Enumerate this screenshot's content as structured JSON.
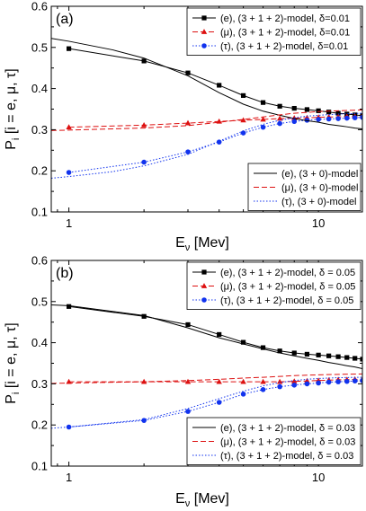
{
  "chart_data": [
    {
      "type": "line",
      "panel_label": "(a)",
      "xlabel_main": "E",
      "xlabel_sub": "ν",
      "xlabel_rest": " [Mev]",
      "ylabel_main": "P",
      "ylabel_sub": "i",
      "ylabel_rest": " [i = e, μ, τ]",
      "x_scale": "log",
      "xlim": [
        0.85,
        15
      ],
      "ylim": [
        0.1,
        0.6
      ],
      "x_ticks": [
        1,
        10
      ],
      "x_tick_labels": [
        "1",
        "10"
      ],
      "y_ticks": [
        0.1,
        0.2,
        0.3,
        0.4,
        0.5,
        0.6
      ],
      "y_tick_labels": [
        "0.1",
        "0.2",
        "0.3",
        "0.4",
        "0.5",
        "0.6"
      ],
      "legend_top": {
        "placement": "top-right",
        "entries": [
          {
            "text": "(e), (3 + 1 + 2)-model, δ=0.01",
            "series": 0
          },
          {
            "text": "(μ), (3 + 1 + 2)-model, δ=0.01",
            "series": 1
          },
          {
            "text": "(τ), (3 + 1 + 2)-model, δ=0.01",
            "series": 2
          }
        ]
      },
      "legend_bottom": {
        "placement": "bottom-right",
        "entries": [
          {
            "text": "(e), (3 + 0)-model",
            "series": 3
          },
          {
            "text": "(μ), (3 + 0)-model",
            "series": 4
          },
          {
            "text": "(τ), (3 + 0)-model",
            "series": 5
          }
        ]
      },
      "series": [
        {
          "color": "#000000",
          "marker": "square",
          "dash": "solid",
          "x": [
            1,
            2,
            3,
            4,
            5,
            6,
            7,
            8,
            9,
            10,
            11,
            12,
            13,
            14,
            15
          ],
          "y": [
            0.497,
            0.467,
            0.438,
            0.408,
            0.383,
            0.366,
            0.357,
            0.352,
            0.349,
            0.346,
            0.343,
            0.34,
            0.338,
            0.336,
            0.334
          ]
        },
        {
          "color": "#dd1111",
          "marker": "triangle",
          "dash": "6,3",
          "x": [
            1,
            2,
            3,
            4,
            5,
            6,
            7,
            8,
            9,
            10,
            11,
            12,
            13,
            14,
            15
          ],
          "y": [
            0.306,
            0.311,
            0.316,
            0.32,
            0.323,
            0.325,
            0.327,
            0.328,
            0.329,
            0.33,
            0.331,
            0.331,
            0.332,
            0.332,
            0.333
          ]
        },
        {
          "color": "#1133ee",
          "marker": "circle",
          "dash": "1.5,2",
          "x": [
            1,
            2,
            3,
            4,
            5,
            6,
            7,
            8,
            9,
            10,
            11,
            12,
            13,
            14,
            15
          ],
          "y": [
            0.196,
            0.221,
            0.246,
            0.27,
            0.292,
            0.306,
            0.315,
            0.32,
            0.323,
            0.325,
            0.326,
            0.327,
            0.328,
            0.329,
            0.33
          ]
        },
        {
          "color": "#000000",
          "marker": "none",
          "dash": "solid",
          "x": [
            0.85,
            1,
            1.5,
            2,
            3,
            4,
            5,
            6,
            7,
            8,
            9,
            10,
            11,
            12,
            13,
            14,
            15
          ],
          "y": [
            0.522,
            0.515,
            0.494,
            0.474,
            0.431,
            0.39,
            0.362,
            0.345,
            0.335,
            0.327,
            0.322,
            0.318,
            0.313,
            0.31,
            0.307,
            0.304,
            0.302
          ]
        },
        {
          "color": "#dd1111",
          "marker": "none",
          "dash": "6,3",
          "x": [
            0.85,
            1,
            2,
            3,
            4,
            5,
            6,
            7,
            8,
            9,
            10,
            12,
            15
          ],
          "y": [
            0.298,
            0.299,
            0.304,
            0.31,
            0.318,
            0.325,
            0.331,
            0.336,
            0.34,
            0.342,
            0.344,
            0.346,
            0.348
          ]
        },
        {
          "color": "#1133ee",
          "marker": "none",
          "dash": "1.5,2",
          "x": [
            0.85,
            1,
            1.5,
            2,
            3,
            4,
            5,
            6,
            7,
            8,
            9,
            10,
            12,
            15
          ],
          "y": [
            0.182,
            0.186,
            0.198,
            0.212,
            0.24,
            0.272,
            0.297,
            0.313,
            0.323,
            0.329,
            0.333,
            0.335,
            0.338,
            0.34
          ]
        }
      ]
    },
    {
      "type": "line",
      "panel_label": "(b)",
      "xlabel_main": "E",
      "xlabel_sub": "ν",
      "xlabel_rest": " [Mev]",
      "ylabel_main": "P",
      "ylabel_sub": "i",
      "ylabel_rest": " [i = e, μ, τ]",
      "x_scale": "log",
      "xlim": [
        0.85,
        15
      ],
      "ylim": [
        0.1,
        0.6
      ],
      "x_ticks": [
        1,
        10
      ],
      "x_tick_labels": [
        "1",
        "10"
      ],
      "y_ticks": [
        0.1,
        0.2,
        0.3,
        0.4,
        0.5,
        0.6
      ],
      "y_tick_labels": [
        "0.1",
        "0.2",
        "0.3",
        "0.4",
        "0.5",
        "0.6"
      ],
      "legend_top": {
        "placement": "top-right",
        "entries": [
          {
            "text": "(e), (3 + 1 + 2)-model, δ = 0.05",
            "series": 0
          },
          {
            "text": "(μ), (3 + 1 + 2)-model, δ = 0.05",
            "series": 1
          },
          {
            "text": "(τ), (3 + 1 + 2)-model, δ = 0.05",
            "series": 2
          }
        ]
      },
      "legend_bottom": {
        "placement": "bottom-right",
        "entries": [
          {
            "text": "(e), (3 + 1 + 2)-model, δ = 0.03",
            "series": 3
          },
          {
            "text": "(μ), (3 + 1 + 2)-model, δ = 0.03",
            "series": 4
          },
          {
            "text": "(τ), (3 + 1 + 2)-model, δ = 0.03",
            "series": 5
          }
        ]
      },
      "series": [
        {
          "color": "#000000",
          "marker": "square",
          "dash": "solid",
          "x": [
            1,
            2,
            3,
            4,
            5,
            6,
            7,
            8,
            9,
            10,
            11,
            12,
            13,
            14,
            15
          ],
          "y": [
            0.488,
            0.464,
            0.444,
            0.42,
            0.401,
            0.388,
            0.38,
            0.375,
            0.372,
            0.37,
            0.368,
            0.366,
            0.364,
            0.362,
            0.36
          ]
        },
        {
          "color": "#dd1111",
          "marker": "triangle",
          "dash": "6,3",
          "x": [
            1,
            2,
            3,
            4,
            5,
            6,
            7,
            8,
            9,
            10,
            11,
            12,
            13,
            14,
            15
          ],
          "y": [
            0.305,
            0.305,
            0.305,
            0.305,
            0.305,
            0.305,
            0.305,
            0.306,
            0.307,
            0.308,
            0.309,
            0.31,
            0.31,
            0.311,
            0.311
          ]
        },
        {
          "color": "#1133ee",
          "marker": "circle",
          "dash": "1.5,2",
          "x": [
            1,
            2,
            3,
            4,
            5,
            6,
            7,
            8,
            9,
            10,
            11,
            12,
            13,
            14,
            15
          ],
          "y": [
            0.195,
            0.211,
            0.233,
            0.255,
            0.275,
            0.286,
            0.293,
            0.297,
            0.3,
            0.302,
            0.304,
            0.305,
            0.306,
            0.307,
            0.308
          ]
        },
        {
          "color": "#000000",
          "marker": "none",
          "dash": "solid",
          "x": [
            0.85,
            1,
            2,
            3,
            4,
            5,
            6,
            7,
            8,
            9,
            10,
            11,
            12,
            13,
            14,
            15
          ],
          "y": [
            0.492,
            0.49,
            0.466,
            0.436,
            0.412,
            0.397,
            0.385,
            0.375,
            0.368,
            0.362,
            0.357,
            0.352,
            0.348,
            0.344,
            0.341,
            0.337
          ]
        },
        {
          "color": "#dd1111",
          "marker": "none",
          "dash": "6,3",
          "x": [
            0.85,
            1,
            2,
            3,
            4,
            5,
            6,
            7,
            8,
            9,
            10,
            12,
            15
          ],
          "y": [
            0.301,
            0.302,
            0.305,
            0.308,
            0.311,
            0.314,
            0.316,
            0.318,
            0.32,
            0.321,
            0.322,
            0.323,
            0.324
          ]
        },
        {
          "color": "#1133ee",
          "marker": "none",
          "dash": "1.5,2",
          "x": [
            0.85,
            1,
            2,
            3,
            4,
            5,
            6,
            7,
            8,
            9,
            10,
            12,
            15
          ],
          "y": [
            0.192,
            0.195,
            0.213,
            0.24,
            0.264,
            0.282,
            0.295,
            0.303,
            0.308,
            0.311,
            0.313,
            0.315,
            0.316
          ]
        }
      ]
    }
  ]
}
